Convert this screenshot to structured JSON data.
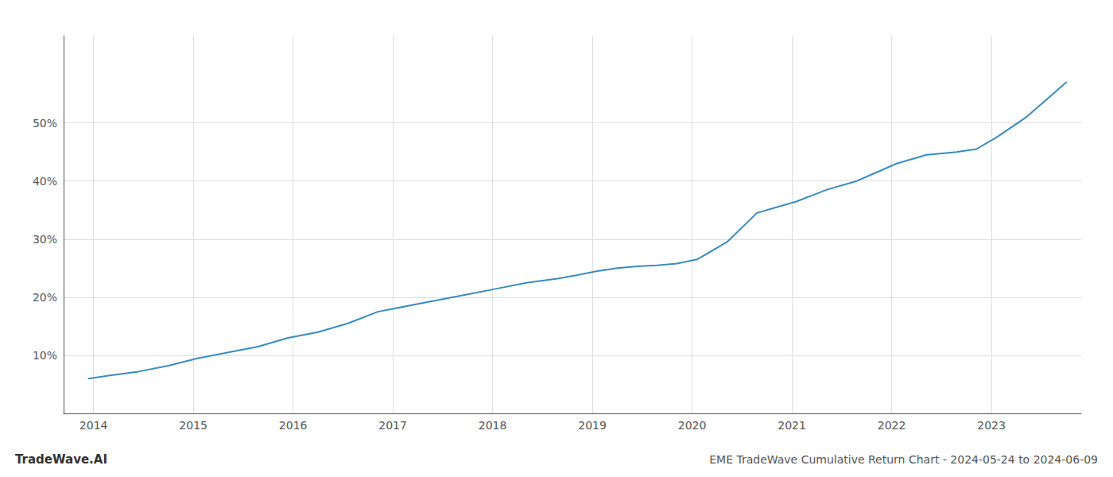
{
  "chart_data": {
    "type": "line",
    "title": "EME TradeWave Cumulative Return Chart - 2024-05-24 to 2024-06-09",
    "annotations": [
      "TradeWave.AI"
    ],
    "x": [
      2013.95,
      2014.15,
      2014.45,
      2014.75,
      2015.05,
      2015.35,
      2015.65,
      2015.95,
      2016.25,
      2016.55,
      2016.85,
      2017.15,
      2017.45,
      2017.75,
      2018.05,
      2018.35,
      2018.65,
      2018.85,
      2019.05,
      2019.25,
      2019.45,
      2019.65,
      2019.85,
      2020.05,
      2020.35,
      2020.65,
      2020.85,
      2021.05,
      2021.35,
      2021.65,
      2021.85,
      2022.05,
      2022.35,
      2022.65,
      2022.85,
      2023.05,
      2023.35,
      2023.55,
      2023.75
    ],
    "values": [
      6.0,
      6.5,
      7.2,
      8.2,
      9.5,
      10.5,
      11.5,
      13.0,
      14.0,
      15.5,
      17.5,
      18.5,
      19.5,
      20.5,
      21.5,
      22.5,
      23.2,
      23.8,
      24.5,
      25.0,
      25.3,
      25.5,
      25.8,
      26.5,
      29.5,
      34.5,
      35.5,
      36.5,
      38.5,
      40.0,
      41.5,
      43.0,
      44.5,
      45.0,
      45.5,
      47.5,
      51.0,
      54.0,
      57.0
    ],
    "color": "#3a8bbf",
    "xlim": [
      2013.7,
      2023.9
    ],
    "xticks": [
      2014,
      2015,
      2016,
      2017,
      2018,
      2019,
      2020,
      2021,
      2022,
      2023
    ],
    "ylim": [
      0,
      65
    ],
    "yticks": [
      {
        "value": 10,
        "label": "10%"
      },
      {
        "value": 20,
        "label": "20%"
      },
      {
        "value": 30,
        "label": "30%"
      },
      {
        "value": 40,
        "label": "40%"
      },
      {
        "value": 50,
        "label": "50%"
      }
    ],
    "grid": true
  }
}
